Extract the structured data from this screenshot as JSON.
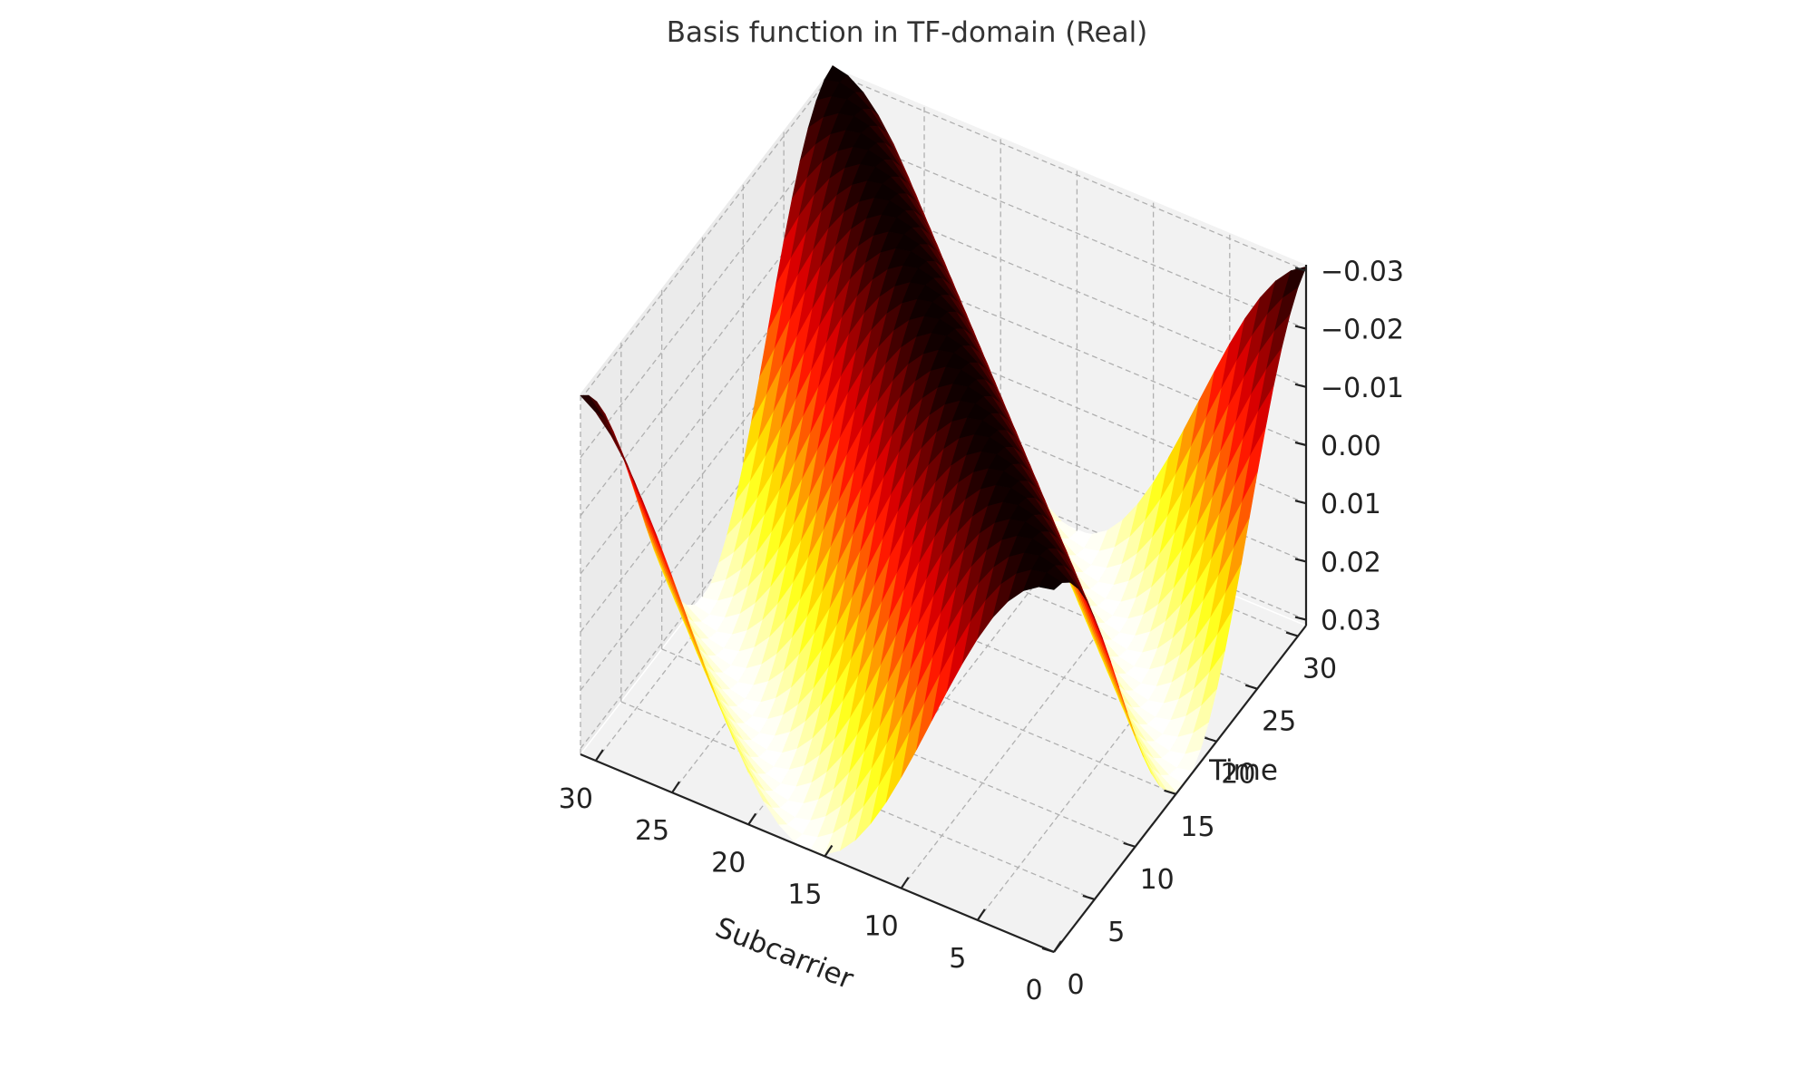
{
  "chart_data": {
    "type": "surface3d",
    "title": "Basis function in TF-domain (Real)",
    "xlabel": "Subcarrier",
    "ylabel": "Time",
    "zlabel": "",
    "xlim": [
      0,
      31
    ],
    "ylim": [
      0,
      31
    ],
    "zlim": [
      -0.031,
      0.031
    ],
    "x_ticks": [
      0,
      5,
      10,
      15,
      20,
      25,
      30
    ],
    "y_ticks": [
      0,
      5,
      10,
      15,
      20,
      25,
      30
    ],
    "z_ticks": [
      -0.03,
      -0.02,
      -0.01,
      0.0,
      0.01,
      0.02,
      0.03
    ],
    "x_tick_labels": [
      "0",
      "5",
      "10",
      "15",
      "20",
      "25",
      "30"
    ],
    "y_tick_labels": [
      "0",
      "5",
      "10",
      "15",
      "20",
      "25",
      "30"
    ],
    "z_tick_labels": [
      "−0.03",
      "−0.02",
      "−0.01",
      "0.00",
      "0.01",
      "0.02",
      "0.03"
    ],
    "z_inverted": true,
    "grid": true,
    "colormap": "hot",
    "function": "-0.03125 * cos(2*pi*(k - l)/32)",
    "x_points": 32,
    "y_points": 32
  }
}
